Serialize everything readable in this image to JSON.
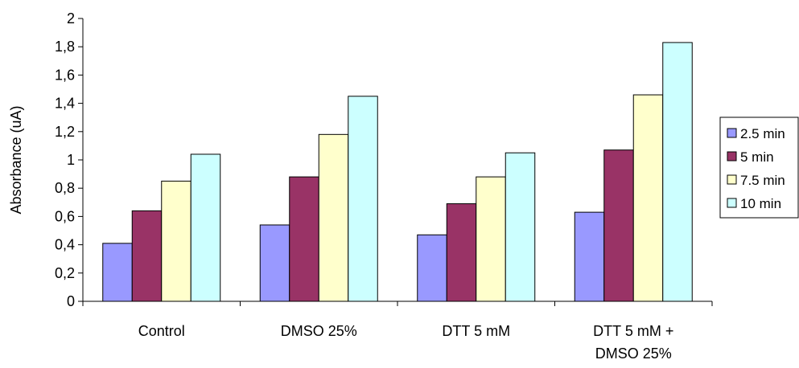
{
  "chart_data": {
    "type": "bar",
    "title": "",
    "xlabel": "",
    "ylabel": "Absorbance (uA)",
    "ylim": [
      0,
      2
    ],
    "y_ticks": [
      "0",
      "0,2",
      "0,4",
      "0,6",
      "0,8",
      "1",
      "1,2",
      "1,4",
      "1,6",
      "1,8",
      "2"
    ],
    "categories": [
      [
        "Control"
      ],
      [
        "DMSO 25%"
      ],
      [
        "DTT 5 mM"
      ],
      [
        "DTT 5 mM +",
        "DMSO 25%"
      ]
    ],
    "series": [
      {
        "name": "2.5 min",
        "color": "#9999ff",
        "values": [
          0.41,
          0.54,
          0.47,
          0.63
        ]
      },
      {
        "name": "5 min",
        "color": "#993366",
        "values": [
          0.64,
          0.88,
          0.69,
          1.07
        ]
      },
      {
        "name": "7.5 min",
        "color": "#ffffcc",
        "values": [
          0.85,
          1.18,
          0.88,
          1.46
        ]
      },
      {
        "name": "10 min",
        "color": "#ccffff",
        "values": [
          1.04,
          1.45,
          1.05,
          1.83
        ]
      }
    ],
    "grid": false,
    "legend_position": "right"
  }
}
